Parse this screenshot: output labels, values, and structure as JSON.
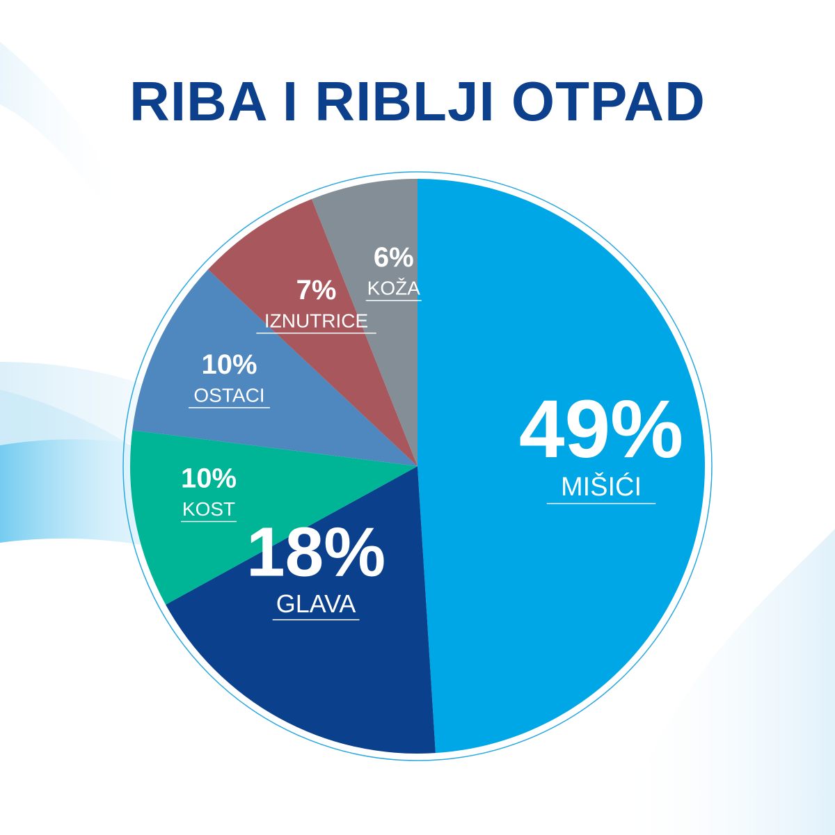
{
  "title": "RIBA I RIBLJI OTPAD",
  "colors": {
    "title": "#0c3f8c",
    "ring": "#29a8e0"
  },
  "chart_data": {
    "type": "pie",
    "title": "RIBA I RIBLJI OTPAD",
    "start": "12 o'clock",
    "direction": "clockwise",
    "slices": [
      {
        "label": "MIŠIĆI",
        "value": 49,
        "value_label": "49%",
        "color": "#00a7e6"
      },
      {
        "label": "GLAVA",
        "value": 18,
        "value_label": "18%",
        "color": "#0b418c"
      },
      {
        "label": "KOST",
        "value": 10,
        "value_label": "10%",
        "color": "#00b496"
      },
      {
        "label": "OSTACI",
        "value": 10,
        "value_label": "10%",
        "color": "#4f87bf"
      },
      {
        "label": "IZNUTRICE",
        "value": 7,
        "value_label": "7%",
        "color": "#a8575c"
      },
      {
        "label": "KOŽA",
        "value": 6,
        "value_label": "6%",
        "color": "#838e96"
      }
    ]
  }
}
